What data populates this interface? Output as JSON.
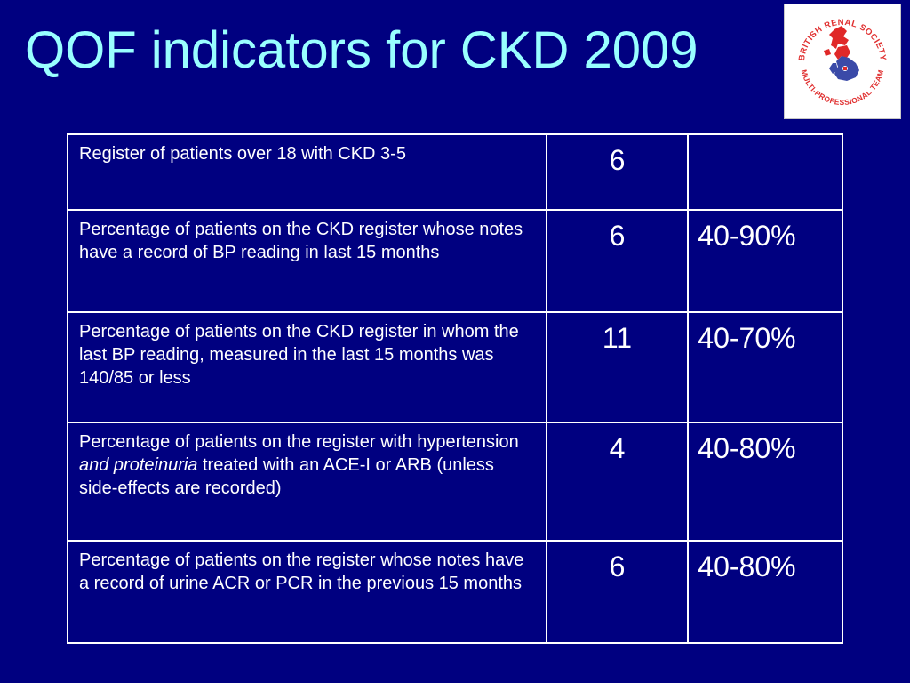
{
  "slide": {
    "title": "QOF indicators for CKD 2009"
  },
  "logo": {
    "top_text": "BRITISH RENAL SOCIETY",
    "bottom_text": "MULTI-PROFESSIONAL TEAM",
    "colors": {
      "text": "#e03030",
      "map_red": "#e02828",
      "map_blue": "#3a4aa8"
    }
  },
  "table": {
    "rows": [
      {
        "description": "Register of patients over 18 with CKD 3-5",
        "points": "6",
        "threshold": ""
      },
      {
        "description": "Percentage of patients on the CKD register whose notes have a record of BP reading in last 15 months",
        "points": "6",
        "threshold": "40-90%"
      },
      {
        "description": "Percentage of patients on the CKD register in whom the last BP reading, measured in the last 15 months was 140/85 or less",
        "points": "11",
        "threshold": "40-70%"
      },
      {
        "description_before": "Percentage of patients on the register with hypertension ",
        "description_emphasis": "and proteinuria",
        "description_after": " treated with an ACE-I or ARB (unless side-effects are recorded)",
        "points": "4",
        "threshold": "40-80%"
      },
      {
        "description": "Percentage of patients on the register whose notes have a record of urine ACR or PCR in the previous 15 months",
        "points": "6",
        "threshold": "40-80%"
      }
    ]
  },
  "colors": {
    "background": "#000080",
    "title": "#99ffff",
    "table_text": "#ffffff",
    "table_border": "#ffffff"
  }
}
